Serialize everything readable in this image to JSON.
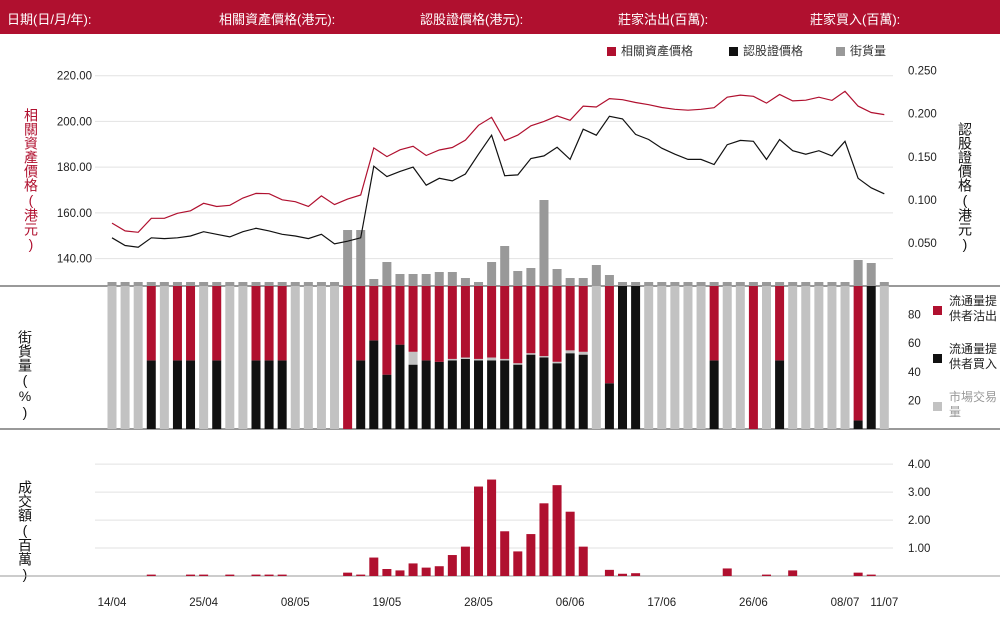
{
  "header": {
    "date_label": "日期(日/月/年):",
    "underlying_label": "相關資產價格(港元):",
    "warrant_label": "認股證價格(港元):",
    "dealer_sell_label": "莊家沽出(百萬):",
    "dealer_buy_label": "莊家買入(百萬):"
  },
  "colors": {
    "brand": "#b0102f",
    "black": "#111111",
    "grey_dark": "#999999",
    "grey_light": "#c2c2c2"
  },
  "chart_data": [
    {
      "type": "line",
      "panel": "price",
      "left_axis_label": "相關資產價格(港元)",
      "right_axis_label": "認股證價格(港元)",
      "left_ticks": [
        "140.00",
        "160.00",
        "180.00",
        "200.00",
        "220.00"
      ],
      "right_ticks": [
        "0.050",
        "0.100",
        "0.150",
        "0.200",
        "0.250"
      ],
      "ylim_left": [
        128,
        226
      ],
      "ylim_right": [
        0,
        0.26
      ],
      "legend": [
        "相關資產價格",
        "認股證價格",
        "街貨量"
      ],
      "series": [
        {
          "name": "相關資產價格",
          "axis": "left",
          "values": [
            155.5,
            152.1,
            151.5,
            157.6,
            157.6,
            159.8,
            160.9,
            164.2,
            162.8,
            163.3,
            166.5,
            168.5,
            168.4,
            165.7,
            164.9,
            162.8,
            167.4,
            163.6,
            166.0,
            167.8,
            188.4,
            184.6,
            187.6,
            189.1,
            185.1,
            187.5,
            188.6,
            191.8,
            198.3,
            201.8,
            191.6,
            194.0,
            198.1,
            200.0,
            202.4,
            200.5,
            206.7,
            206.3,
            210.0,
            209.5,
            208.3,
            207.3,
            206.1,
            205.3,
            204.9,
            205.3,
            206.0,
            210.6,
            211.5,
            211.0,
            208.0,
            211.8,
            209.0,
            209.3,
            210.6,
            209.2,
            213.2,
            206.7,
            203.9,
            203.0
          ]
        },
        {
          "name": "認股證價格",
          "axis": "right",
          "values": [
            0.056,
            0.047,
            0.045,
            0.056,
            0.055,
            0.056,
            0.058,
            0.063,
            0.06,
            0.057,
            0.063,
            0.067,
            0.064,
            0.06,
            0.058,
            0.055,
            0.06,
            0.049,
            0.052,
            0.056,
            0.139,
            0.127,
            0.133,
            0.138,
            0.117,
            0.125,
            0.122,
            0.13,
            0.153,
            0.175,
            0.128,
            0.129,
            0.148,
            0.151,
            0.161,
            0.147,
            0.182,
            0.175,
            0.197,
            0.194,
            0.176,
            0.17,
            0.16,
            0.153,
            0.147,
            0.147,
            0.141,
            0.164,
            0.169,
            0.168,
            0.147,
            0.17,
            0.157,
            0.153,
            0.157,
            0.151,
            0.168,
            0.125,
            0.114,
            0.107
          ]
        }
      ]
    },
    {
      "type": "bar",
      "panel": "outstanding_top",
      "series_name": "街貨量",
      "values": [
        4,
        4,
        4,
        4,
        4,
        4,
        4,
        4,
        4,
        4,
        4,
        4,
        4,
        4,
        4,
        4,
        4,
        4,
        56,
        56,
        7,
        24,
        12,
        12,
        12,
        14,
        14,
        8,
        4,
        24,
        40,
        15,
        18,
        86,
        17,
        8,
        8,
        21,
        11,
        4,
        4,
        4,
        4,
        4,
        4,
        4,
        4,
        4,
        4,
        4,
        4,
        4,
        4,
        4,
        4,
        4,
        4,
        26,
        23,
        4
      ]
    },
    {
      "type": "bar",
      "panel": "percentage",
      "axis_label": "街貨量(%)",
      "ticks": [
        "20",
        "40",
        "60",
        "80"
      ],
      "ylim": [
        0,
        100
      ],
      "legend": [
        "流通量提供者沽出",
        "流通量提供者買入",
        "市場交易量"
      ],
      "segments_order_bottom_up": [
        "流通量提供者買入",
        "市場交易量",
        "流通量提供者沽出"
      ],
      "rows": [
        [
          0,
          100,
          0
        ],
        [
          0,
          100,
          0
        ],
        [
          0,
          100,
          0
        ],
        [
          48,
          0,
          52
        ],
        [
          0,
          100,
          0
        ],
        [
          48,
          0,
          52
        ],
        [
          48,
          0,
          52
        ],
        [
          0,
          100,
          0
        ],
        [
          48,
          0,
          52
        ],
        [
          0,
          100,
          0
        ],
        [
          0,
          100,
          0
        ],
        [
          48,
          0,
          52
        ],
        [
          48,
          0,
          52
        ],
        [
          48,
          0,
          52
        ],
        [
          0,
          100,
          0
        ],
        [
          0,
          100,
          0
        ],
        [
          0,
          100,
          0
        ],
        [
          0,
          100,
          0
        ],
        [
          0,
          0,
          100
        ],
        [
          48,
          0,
          52
        ],
        [
          62,
          0,
          38
        ],
        [
          38,
          0,
          62
        ],
        [
          59,
          0,
          41
        ],
        [
          45,
          9,
          46
        ],
        [
          48,
          0,
          52
        ],
        [
          47,
          0,
          53
        ],
        [
          48,
          1,
          51
        ],
        [
          49,
          1,
          50
        ],
        [
          48,
          1,
          51
        ],
        [
          48,
          2,
          50
        ],
        [
          48,
          1,
          51
        ],
        [
          45,
          1,
          54
        ],
        [
          52,
          1,
          47
        ],
        [
          50,
          1,
          49
        ],
        [
          46,
          1,
          53
        ],
        [
          53,
          2,
          45
        ],
        [
          52,
          2,
          46
        ],
        [
          0,
          100,
          0
        ],
        [
          32,
          0,
          68
        ],
        [
          100,
          0,
          0
        ],
        [
          100,
          0,
          0
        ],
        [
          0,
          100,
          0
        ],
        [
          0,
          100,
          0
        ],
        [
          0,
          100,
          0
        ],
        [
          0,
          100,
          0
        ],
        [
          0,
          100,
          0
        ],
        [
          48,
          0,
          52
        ],
        [
          0,
          100,
          0
        ],
        [
          0,
          100,
          0
        ],
        [
          0,
          0,
          100
        ],
        [
          0,
          100,
          0
        ],
        [
          48,
          0,
          52
        ],
        [
          0,
          100,
          0
        ],
        [
          0,
          100,
          0
        ],
        [
          0,
          100,
          0
        ],
        [
          0,
          100,
          0
        ],
        [
          0,
          100,
          0
        ],
        [
          6,
          0,
          94
        ],
        [
          100,
          0,
          0
        ],
        [
          0,
          100,
          0
        ]
      ]
    },
    {
      "type": "bar",
      "panel": "turnover",
      "axis_label": "成交額(百萬)",
      "ticks": [
        "1.00",
        "2.00",
        "3.00",
        "4.00"
      ],
      "ylim": [
        0,
        4.4
      ],
      "x_ticks": [
        "14/04",
        "25/04",
        "08/05",
        "19/05",
        "28/05",
        "06/06",
        "17/06",
        "26/06",
        "08/07",
        "11/07"
      ],
      "x_tick_index": [
        0,
        7,
        14,
        21,
        28,
        35,
        42,
        49,
        56,
        59
      ],
      "values": [
        0,
        0,
        0,
        0.05,
        0,
        0,
        0.05,
        0.05,
        0,
        0.05,
        0,
        0.05,
        0.05,
        0.05,
        0,
        0,
        0,
        0,
        0.12,
        0.05,
        0.66,
        0.25,
        0.2,
        0.45,
        0.3,
        0.35,
        0.75,
        1.05,
        3.2,
        3.45,
        1.6,
        0.88,
        1.5,
        2.6,
        3.25,
        2.3,
        1.05,
        0,
        0.22,
        0.08,
        0.1,
        0,
        0,
        0,
        0,
        0,
        0,
        0.27,
        0,
        0,
        0.05,
        0,
        0.2,
        0,
        0,
        0,
        0,
        0.12,
        0.05,
        0
      ]
    }
  ]
}
